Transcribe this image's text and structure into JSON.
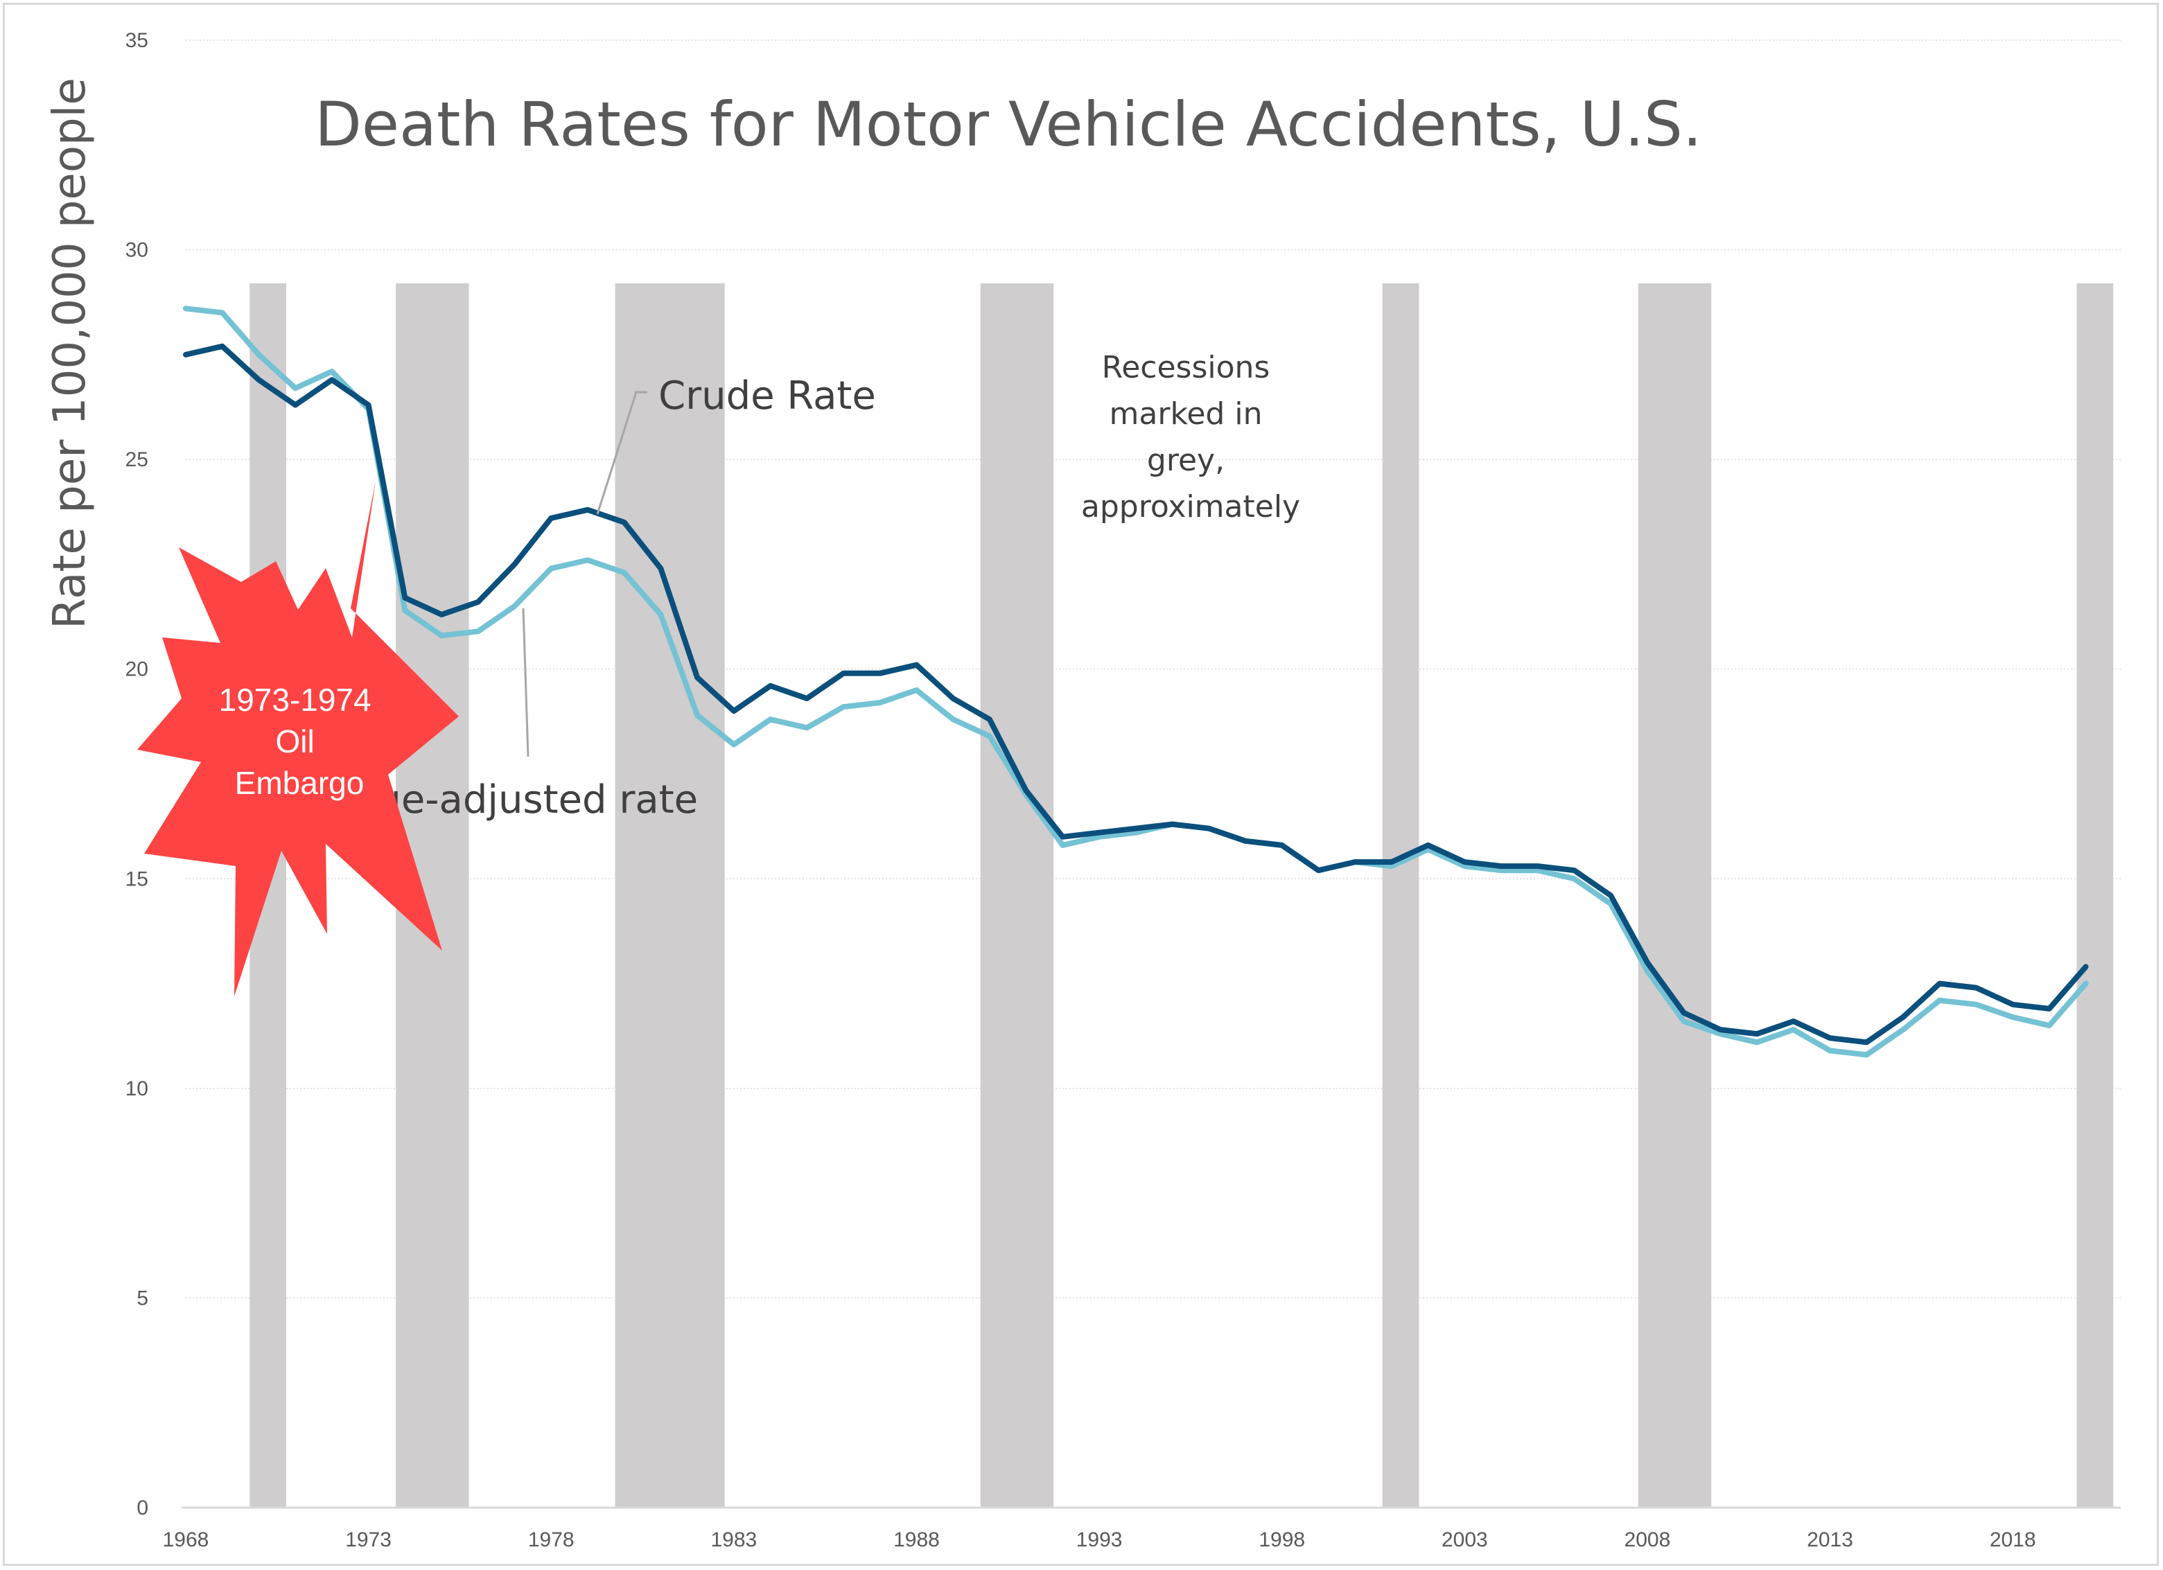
{
  "chart_data": {
    "type": "line",
    "title": "Death Rates for Motor Vehicle Accidents, U.S.",
    "ylabel": "Rate per 100,000 people",
    "xlabel": "",
    "xlim": [
      1968,
      2020.5
    ],
    "ylim": [
      0,
      35
    ],
    "yticks": [
      0,
      5,
      10,
      15,
      20,
      25,
      30,
      35
    ],
    "xticks": [
      1968,
      1973,
      1978,
      1983,
      1988,
      1993,
      1998,
      2003,
      2008,
      2013,
      2018
    ],
    "grid": true,
    "x": [
      1968,
      1969,
      1970,
      1971,
      1972,
      1973,
      1974,
      1975,
      1976,
      1977,
      1978,
      1979,
      1980,
      1981,
      1982,
      1983,
      1984,
      1985,
      1986,
      1987,
      1988,
      1989,
      1990,
      1991,
      1992,
      1993,
      1994,
      1995,
      1996,
      1997,
      1998,
      1999,
      2000,
      2001,
      2002,
      2003,
      2004,
      2005,
      2006,
      2007,
      2008,
      2009,
      2010,
      2011,
      2012,
      2013,
      2014,
      2015,
      2016,
      2017,
      2018,
      2019,
      2020
    ],
    "series": [
      {
        "name": "Crude Rate",
        "color": "#0b4f7c",
        "values": [
          27.5,
          27.7,
          26.9,
          26.3,
          26.9,
          26.3,
          21.7,
          21.3,
          21.6,
          22.5,
          23.6,
          23.8,
          23.5,
          22.4,
          19.8,
          19.0,
          19.6,
          19.3,
          19.9,
          19.9,
          20.1,
          19.3,
          18.8,
          17.1,
          16.0,
          16.1,
          16.2,
          16.3,
          16.2,
          15.9,
          15.8,
          15.2,
          15.4,
          15.4,
          15.8,
          15.4,
          15.3,
          15.3,
          15.2,
          14.6,
          13.0,
          11.8,
          11.4,
          11.3,
          11.6,
          11.2,
          11.1,
          11.7,
          12.5,
          12.4,
          12.0,
          11.9,
          12.9
        ]
      },
      {
        "name": "Age-adjusted rate",
        "color": "#74c2d4",
        "values": [
          28.6,
          28.5,
          27.5,
          26.7,
          27.1,
          26.2,
          21.4,
          20.8,
          20.9,
          21.5,
          22.4,
          22.6,
          22.3,
          21.3,
          18.9,
          18.2,
          18.8,
          18.6,
          19.1,
          19.2,
          19.5,
          18.8,
          18.4,
          17.0,
          15.8,
          16.0,
          16.1,
          16.3,
          16.2,
          15.9,
          15.8,
          15.2,
          15.4,
          15.3,
          15.7,
          15.3,
          15.2,
          15.2,
          15.0,
          14.4,
          12.8,
          11.6,
          11.3,
          11.1,
          11.4,
          10.9,
          10.8,
          11.4,
          12.1,
          12.0,
          11.7,
          11.5,
          12.5
        ]
      }
    ],
    "recessions": [
      [
        1969.75,
        1970.75
      ],
      [
        1973.75,
        1975.75
      ],
      [
        1979.75,
        1982.75
      ],
      [
        1989.75,
        1991.75
      ],
      [
        2000.75,
        2001.75
      ],
      [
        2007.75,
        2009.75
      ],
      [
        2019.75,
        2020.75
      ]
    ],
    "recession_color": "#cfcdce",
    "annotations": {
      "crude_label": "Crude Rate",
      "age_label": "Age-adjusted rate",
      "recession_note": [
        "Recessions",
        "marked in",
        "grey,",
        "approximately"
      ],
      "burst_lines": [
        "1973-1974",
        "Oil",
        "Embargo"
      ],
      "burst_color": "#fd4343"
    }
  }
}
